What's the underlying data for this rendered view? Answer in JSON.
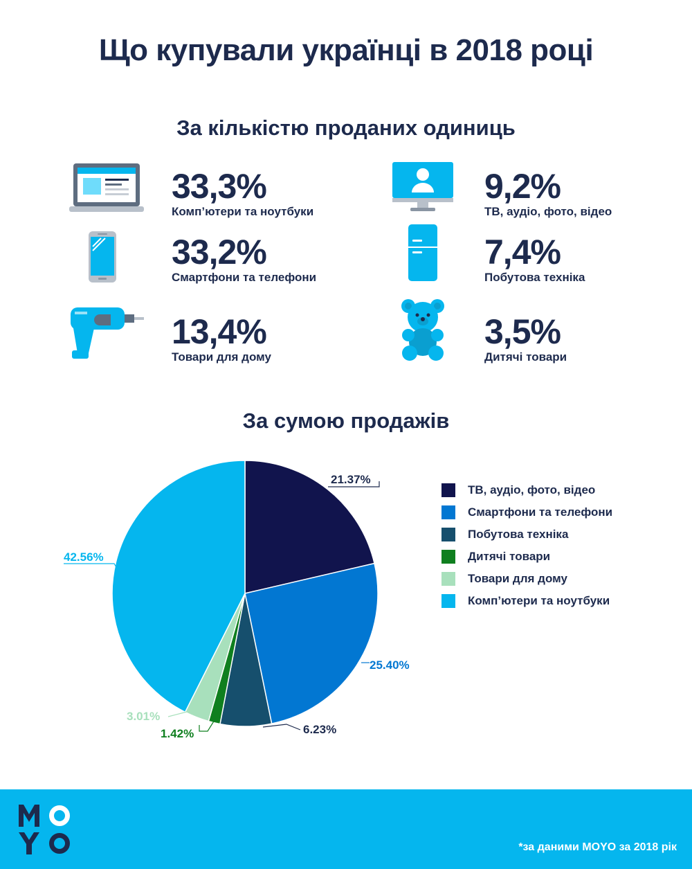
{
  "title": "Що купували українці в 2018 році",
  "section_units": "За кількістю проданих одиниць",
  "section_sales": "За сумою продажів",
  "unit_stats": [
    {
      "percent": "33,3%",
      "label": "Комп’ютери та ноутбуки",
      "icon": "laptop-icon"
    },
    {
      "percent": "33,2%",
      "label": "Смартфони та телефони",
      "icon": "smartphone-icon"
    },
    {
      "percent": "13,4%",
      "label": "Товари для дому",
      "icon": "drill-icon"
    },
    {
      "percent": "9,2%",
      "label": "ТВ, аудіо, фото, відео",
      "icon": "monitor-icon"
    },
    {
      "percent": "7,4%",
      "label": "Побутова техніка",
      "icon": "fridge-icon"
    },
    {
      "percent": "3,5%",
      "label": "Дитячі товари",
      "icon": "teddy-bear-icon"
    }
  ],
  "chart_data": {
    "type": "pie",
    "title": "За сумою продажів",
    "legend_position": "right",
    "slices": [
      {
        "name": "ТВ, аудіо, фото, відео",
        "value": 21.37,
        "label": "21.37%",
        "color": "#11144d"
      },
      {
        "name": "Смартфони та телефони",
        "value": 25.4,
        "label": "25.40%",
        "color": "#0277d2"
      },
      {
        "name": "Побутова техніка",
        "value": 6.23,
        "label": "6.23%",
        "color": "#164f6d"
      },
      {
        "name": "Дитячі товари",
        "value": 1.42,
        "label": "1.42%",
        "color": "#0f7f1f"
      },
      {
        "name": "Товари для дому",
        "value": 3.01,
        "label": "3.01%",
        "color": "#a8e0bc"
      },
      {
        "name": "Комп’ютери та ноутбуки",
        "value": 42.56,
        "label": "42.56%",
        "color": "#05b6ee"
      }
    ],
    "label_colors": [
      "#1d2a4d",
      "#0277d2",
      "#1d2a4d",
      "#0f7f1f",
      "#a8e0bc",
      "#05b6ee"
    ]
  },
  "footer": {
    "logo_text": "MOYO",
    "note": "*за даними MOYO за 2018 рік",
    "background": "#05b6ee"
  },
  "colors": {
    "navy": "#1d2a4d",
    "accent": "#05b6ee"
  }
}
